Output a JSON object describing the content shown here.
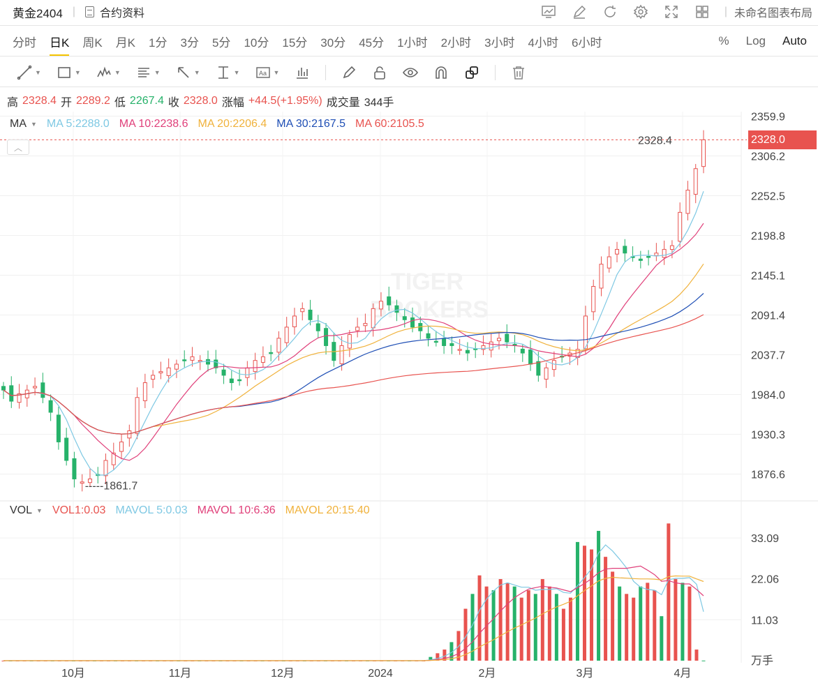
{
  "header": {
    "symbol": "黄金2404",
    "contract_info": "合约资料",
    "layout_name": "未命名图表布局",
    "icons": [
      "chart-snapshot-icon",
      "edit-icon",
      "refresh-icon",
      "settings-icon",
      "fullscreen-icon",
      "grid-layout-icon"
    ]
  },
  "periods": [
    "分时",
    "日K",
    "周K",
    "月K",
    "1分",
    "3分",
    "5分",
    "10分",
    "15分",
    "30分",
    "45分",
    "1小时",
    "2小时",
    "3小时",
    "4小时",
    "6小时"
  ],
  "active_period": "日K",
  "scale_options": {
    "percent": "%",
    "log": "Log",
    "auto": "Auto"
  },
  "drawing_tools": [
    "line-tool-icon",
    "rectangle-tool-icon",
    "wave-tool-icon",
    "fib-tool-icon",
    "arrow-tool-icon",
    "measure-tool-icon",
    "text-tool-icon",
    "bar-pattern-icon",
    "pen-icon",
    "lock-icon",
    "eye-icon",
    "magnet-icon",
    "layers-icon",
    "trash-icon"
  ],
  "ohlc": {
    "high_label": "高",
    "high": "2328.4",
    "open_label": "开",
    "open": "2289.2",
    "low_label": "低",
    "low": "2267.4",
    "close_label": "收",
    "close": "2328.0",
    "change_label": "涨幅",
    "change": "+44.5(+1.95%)",
    "volume_label": "成交量",
    "volume": "344手"
  },
  "ma_legend": {
    "name": "MA",
    "ma5": "MA  5:2288.0",
    "ma10": "MA  10:2238.6",
    "ma20": "MA  20:2206.4",
    "ma30": "MA  30:2167.5",
    "ma60": "MA  60:2105.5"
  },
  "vol_legend": {
    "name": "VOL",
    "vol1": "VOL1:0.03",
    "mavol5": "MAVOL  5:0.03",
    "mavol10": "MAVOL  10:6.36",
    "mavol20": "MAVOL  20:15.40"
  },
  "colors": {
    "up": "#e8534f",
    "down": "#26b26a",
    "ma5": "#7ec8e3",
    "ma10": "#e0407a",
    "ma20": "#f0b23c",
    "ma30": "#1f4fb5",
    "ma60": "#e8534f"
  },
  "chart_data": {
    "type": "candlestick",
    "price_axis": [
      "2359.9",
      "2306.2",
      "2252.5",
      "2198.8",
      "2145.1",
      "2091.4",
      "2037.7",
      "1984.0",
      "1930.3",
      "1876.6"
    ],
    "volume_axis": [
      "33.09",
      "22.06",
      "11.03"
    ],
    "volume_unit": "万手",
    "time_axis": [
      "10月",
      "11月",
      "12月",
      "2024",
      "2月",
      "3月",
      "4月"
    ],
    "last_price": "2328.0",
    "high_marker": "2328.4",
    "low_marker": "1861.7",
    "ylim": [
      1846,
      2366
    ],
    "close_approx": [
      1990,
      1975,
      1985,
      1990,
      1995,
      1980,
      1960,
      1920,
      1895,
      1870,
      1866,
      1870,
      1875,
      1895,
      1905,
      1920,
      1935,
      1980,
      2000,
      2010,
      2015,
      2020,
      2025,
      2030,
      2035,
      2030,
      2025,
      2020,
      2010,
      2000,
      2003,
      2020,
      2030,
      2035,
      2040,
      2060,
      2075,
      2090,
      2100,
      2085,
      2070,
      2050,
      2030,
      2050,
      2065,
      2075,
      2080,
      2100,
      2110,
      2105,
      2095,
      2085,
      2075,
      2070,
      2060,
      2055,
      2050,
      2050,
      2045,
      2040,
      2045,
      2050,
      2055,
      2060,
      2055,
      2050,
      2040,
      2025,
      2010,
      2020,
      2030,
      2035,
      2040,
      2045,
      2090,
      2130,
      2160,
      2170,
      2180,
      2175,
      2170,
      2165,
      2170,
      2175,
      2180,
      2185,
      2230,
      2260,
      2289,
      2328
    ],
    "volume_approx": [
      0,
      0,
      0,
      0,
      0,
      0,
      0,
      0,
      0,
      0,
      0,
      0,
      0,
      0,
      0,
      0,
      0,
      0,
      0,
      0,
      0,
      0,
      0,
      0,
      0,
      0,
      0,
      0,
      0,
      0,
      0,
      0,
      0,
      0,
      0,
      0,
      0,
      0,
      0,
      0,
      0,
      0,
      0,
      0,
      0,
      0,
      0,
      0,
      0,
      0,
      0,
      0,
      0,
      0,
      0,
      0,
      0,
      0,
      0,
      0,
      0,
      1,
      2,
      3,
      5,
      8,
      14,
      18,
      23,
      20,
      19,
      22,
      21,
      20,
      17,
      19,
      18,
      22,
      20,
      18,
      14,
      17,
      32,
      31,
      30,
      35,
      28,
      24,
      20,
      18,
      17,
      20,
      21,
      19,
      12,
      37,
      22,
      21,
      20,
      3,
      0.03
    ]
  }
}
